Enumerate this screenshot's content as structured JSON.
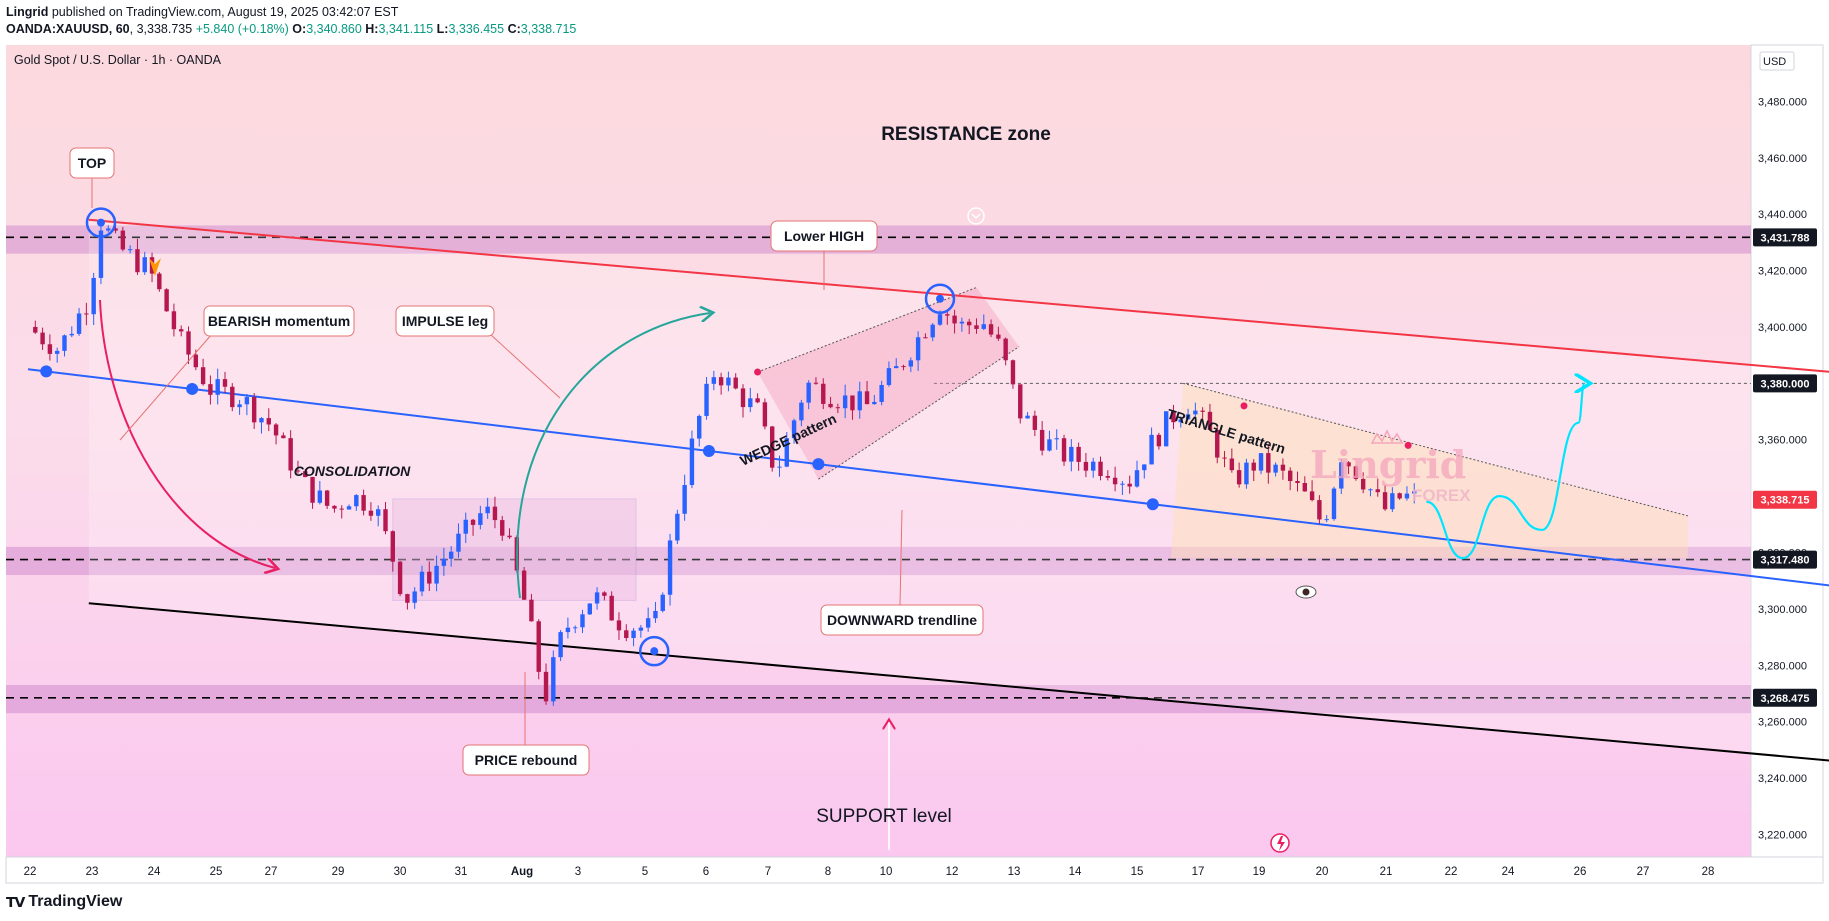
{
  "header": {
    "publisher": "Lingrid",
    "published_text": "published on TradingView.com, August 19, 2025 03:42:07 EST",
    "symbol": "OANDA:XAUUSD, 60",
    "last": "3,338.735",
    "change": "+5.840 (+0.18%)",
    "o_label": "O:",
    "o": "3,340.860",
    "h_label": "H:",
    "h": "3,341.115",
    "l_label": "L:",
    "l": "3,336.455",
    "c_label": "C:",
    "c": "3,338.715"
  },
  "chart_title": "Gold Spot / U.S. Dollar · 1h · OANDA",
  "currency": "USD",
  "footer": {
    "brand": "TradingView"
  },
  "watermark": {
    "line1": "Lingrid",
    "line2": "FOREX"
  },
  "annotations": {
    "resistance_zone": "RESISTANCE zone",
    "top": "TOP",
    "lower_high": "Lower HIGH",
    "bearish_momentum": "BEARISH momentum",
    "impulse_leg": "IMPULSE leg",
    "consolidation": "CONSOLIDATION",
    "wedge_pattern": "WEDGE pattern",
    "triangle_pattern": "TRIANGLE pattern",
    "downward_trendline": "DOWNWARD trendline",
    "price_rebound": "PRICE rebound",
    "support_level": "SUPPORT level"
  },
  "colors": {
    "resistance_line": "#f23645",
    "channel_line": "#2962ff",
    "lower_line": "#000000",
    "up_candle": "#2962ff",
    "down_candle": "#b5174f",
    "projection": "#00e5ff",
    "current_price_tag": "#f23645"
  },
  "chart_data": {
    "type": "candlestick",
    "title": "Gold Spot / U.S. Dollar · 1h · OANDA",
    "ylim": [
      3212,
      3500
    ],
    "y_ticks": [
      3220,
      3240,
      3260,
      3280,
      3300,
      3320,
      3340,
      3360,
      3380,
      3400,
      3420,
      3440,
      3460,
      3480
    ],
    "y_tick_labels": [
      "3,220.000",
      "3,240.000",
      "3,260.000",
      "3,280.000",
      "3,300.000",
      "3,320.000",
      "3,340.000",
      "3,360.000",
      "3,380.000",
      "3,400.000",
      "3,420.000",
      "3,440.000",
      "3,460.000",
      "3,480.000"
    ],
    "x_ticks": [
      "22",
      "23",
      "24",
      "25",
      "27",
      "29",
      "30",
      "31",
      "Aug",
      "3",
      "5",
      "6",
      "7",
      "8",
      "10",
      "12",
      "13",
      "14",
      "15",
      "17",
      "19",
      "20",
      "21",
      "22",
      "24",
      "26",
      "27",
      "28"
    ],
    "price_labels": [
      {
        "value": 3431.788,
        "label": "3,431.788",
        "style": "level"
      },
      {
        "value": 3380.0,
        "label": "3,380.000",
        "style": "level"
      },
      {
        "value": 3338.715,
        "label": "3,338.715",
        "style": "current"
      },
      {
        "value": 3317.48,
        "label": "3,317.480",
        "style": "level"
      },
      {
        "value": 3268.475,
        "label": "3,268.475",
        "style": "level"
      }
    ],
    "horizontal_levels": [
      3431.788,
      3317.48,
      3268.475
    ],
    "zones": [
      [
        3426,
        3436
      ],
      [
        3312,
        3322
      ],
      [
        3263,
        3273
      ]
    ],
    "price_path": [
      [
        0,
        3400
      ],
      [
        0.5,
        3392
      ],
      [
        1,
        3410
      ],
      [
        1.2,
        3437
      ],
      [
        1.5,
        3428
      ],
      [
        2,
        3420
      ],
      [
        2.5,
        3395
      ],
      [
        3,
        3378
      ],
      [
        3.5,
        3375
      ],
      [
        4,
        3365
      ],
      [
        4.5,
        3345
      ],
      [
        5,
        3335
      ],
      [
        5.3,
        3340
      ],
      [
        5.7,
        3337
      ],
      [
        6,
        3318
      ],
      [
        6.2,
        3303
      ],
      [
        6.5,
        3310
      ],
      [
        7,
        3322
      ],
      [
        7.5,
        3335
      ],
      [
        7.8,
        3330
      ],
      [
        8.2,
        3300
      ],
      [
        8.5,
        3268
      ],
      [
        8.8,
        3292
      ],
      [
        9.3,
        3305
      ],
      [
        9.8,
        3294
      ],
      [
        10.3,
        3293
      ],
      [
        10.7,
        3338
      ],
      [
        11,
        3365
      ],
      [
        11.3,
        3385
      ],
      [
        11.6,
        3378
      ],
      [
        12,
        3370
      ],
      [
        12.3,
        3348
      ],
      [
        12.8,
        3380
      ],
      [
        13.3,
        3375
      ],
      [
        13.8,
        3372
      ],
      [
        14.3,
        3385
      ],
      [
        14.7,
        3398
      ],
      [
        15,
        3408
      ],
      [
        15.3,
        3400
      ],
      [
        15.7,
        3402
      ],
      [
        16,
        3392
      ],
      [
        16.3,
        3370
      ],
      [
        16.7,
        3360
      ],
      [
        17,
        3355
      ],
      [
        17.4,
        3352
      ],
      [
        17.8,
        3350
      ],
      [
        18.1,
        3345
      ],
      [
        18.4,
        3356
      ],
      [
        18.8,
        3368
      ],
      [
        19.1,
        3373
      ],
      [
        19.5,
        3360
      ],
      [
        19.8,
        3345
      ],
      [
        20.2,
        3352
      ],
      [
        20.6,
        3348
      ],
      [
        21,
        3340
      ],
      [
        21.3,
        3330
      ],
      [
        21.6,
        3355
      ],
      [
        22,
        3345
      ],
      [
        22.3,
        3335
      ],
      [
        22.6,
        3340
      ],
      [
        22.9,
        3338.7
      ]
    ],
    "key_points": [
      {
        "name": "TOP",
        "x": 1.2,
        "y": 3437
      },
      {
        "name": "Lower HIGH",
        "x": 15.0,
        "y": 3410
      },
      {
        "name": "PRICE rebound",
        "x": 10.3,
        "y": 3285
      }
    ],
    "trendlines": [
      {
        "name": "resistance",
        "from": [
          1.0,
          3438
        ],
        "to": [
          31.8,
          3380
        ]
      },
      {
        "name": "downward",
        "from": [
          0,
          3385
        ],
        "to": [
          34,
          3297
        ]
      },
      {
        "name": "lower-channel",
        "from": [
          1.0,
          3302
        ],
        "to": [
          31.8,
          3242
        ]
      }
    ],
    "projection": [
      [
        23.0,
        3338
      ],
      [
        23.6,
        3318
      ],
      [
        24.2,
        3340
      ],
      [
        24.9,
        3328
      ],
      [
        25.5,
        3366
      ],
      [
        25.6,
        3380
      ]
    ],
    "grid": false,
    "legend": "none"
  }
}
